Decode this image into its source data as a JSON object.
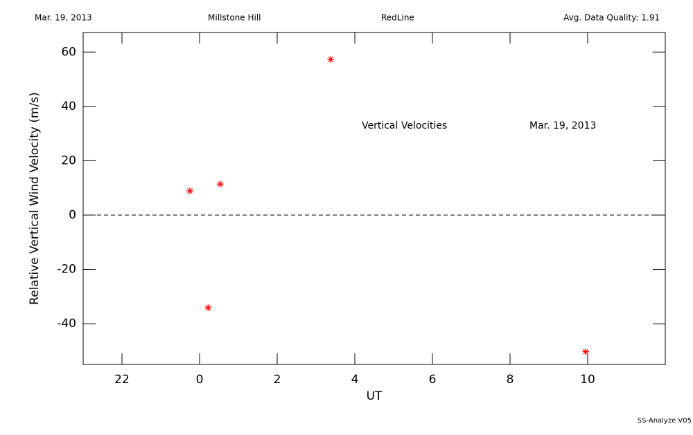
{
  "header": {
    "left": "Mar. 19, 2013",
    "center_left": "Millstone Hill",
    "center_right": "RedLine",
    "right": "Avg. Data Quality: 1.91"
  },
  "footer": "SS-Analyze V05",
  "chart_data": {
    "type": "scatter",
    "annotations": [
      "Vertical Velocities",
      "Mar. 19, 2013"
    ],
    "x_label": "UT",
    "y_label": "Relative Vertical Wind Velocity (m/s)",
    "x": [
      -0.25,
      0.22,
      0.53,
      3.38,
      9.95
    ],
    "values": [
      8.9,
      -34.1,
      11.4,
      57.3,
      -50.3
    ],
    "color": "#ff0000",
    "xlim": [
      -3,
      12
    ],
    "ylim": [
      -55,
      67.2
    ],
    "xticks": [
      {
        "value": -2,
        "label": "22"
      },
      0,
      2,
      4,
      6,
      8,
      10
    ],
    "yticks": [
      -40,
      -20,
      0,
      20,
      40,
      60
    ],
    "reference_line": 0
  }
}
